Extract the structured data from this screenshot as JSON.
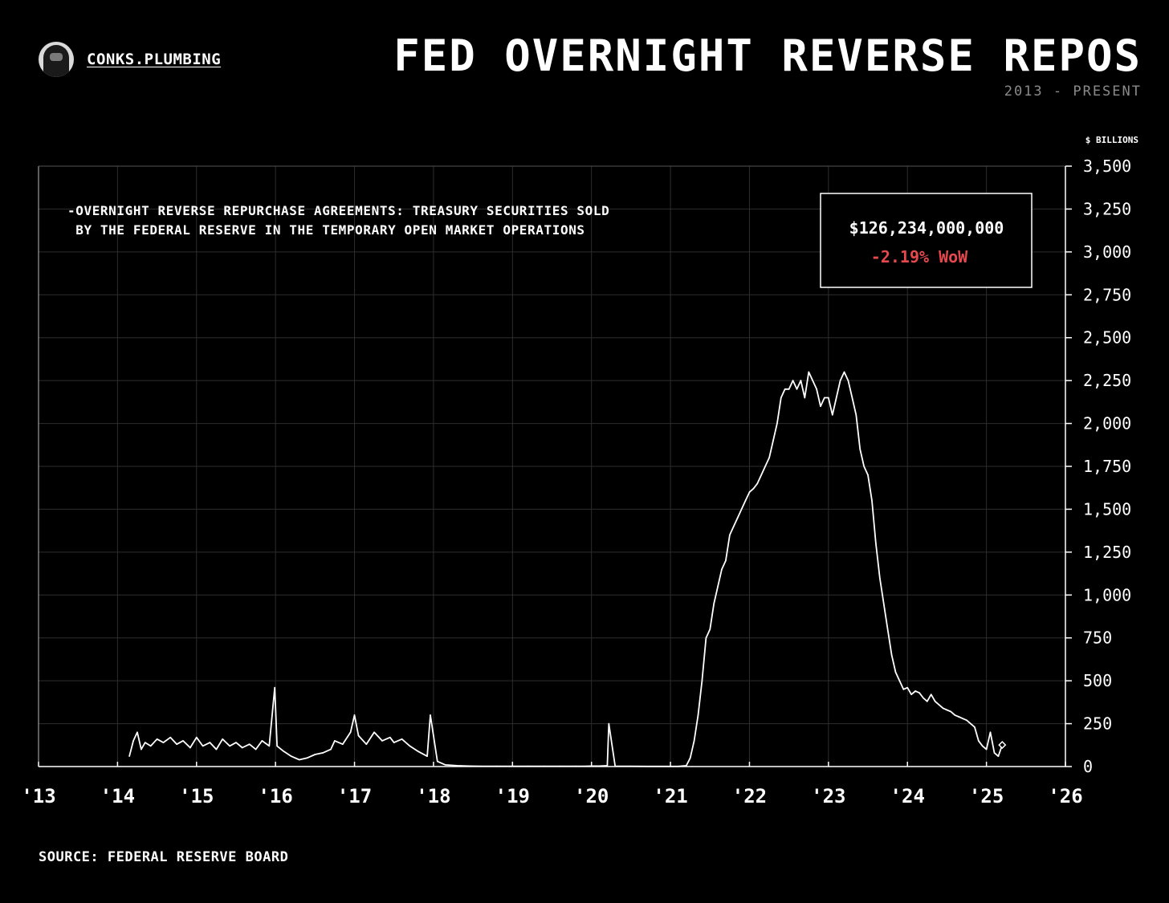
{
  "brand": {
    "name": "CONKS.PLUMBING"
  },
  "header": {
    "title": "FED OVERNIGHT REVERSE REPOS",
    "subtitle": "2013 - PRESENT"
  },
  "footer": {
    "source": "SOURCE: FEDERAL RESERVE BOARD"
  },
  "colors": {
    "background": "#000000",
    "line": "#ffffff",
    "grid": "#2e2e2e",
    "negative": "#e5484d"
  },
  "chart_data": {
    "type": "line",
    "title": "FED OVERNIGHT REVERSE REPOS",
    "subtitle": "2013 - PRESENT",
    "ylabel": "$ BILLIONS",
    "xlabel": "",
    "xlim": [
      2013,
      2026
    ],
    "ylim": [
      0,
      3500
    ],
    "yticks": [
      0,
      250,
      500,
      750,
      1000,
      1250,
      1500,
      1750,
      2000,
      2250,
      2500,
      2750,
      3000,
      3250,
      3500
    ],
    "ytick_labels": [
      "0",
      "250",
      "500",
      "750",
      "1,000",
      "1,250",
      "1,500",
      "1,750",
      "2,000",
      "2,250",
      "2,500",
      "2,750",
      "3,000",
      "3,250",
      "3,500"
    ],
    "xticks": [
      2013,
      2014,
      2015,
      2016,
      2017,
      2018,
      2019,
      2020,
      2021,
      2022,
      2023,
      2024,
      2025,
      2026
    ],
    "xtick_labels": [
      "'13",
      "'14",
      "'15",
      "'16",
      "'17",
      "'18",
      "'19",
      "'20",
      "'21",
      "'22",
      "'23",
      "'24",
      "'25",
      "'26"
    ],
    "grid": true,
    "y_axis_position": "right",
    "annotation_lines": [
      "-OVERNIGHT REVERSE REPURCHASE AGREEMENTS: TREASURY SECURITIES SOLD",
      " BY THE FEDERAL RESERVE IN THE TEMPORARY OPEN MARKET OPERATIONS"
    ],
    "latest": {
      "value_label": "$126,234,000,000",
      "change_label": "-2.19% WoW"
    },
    "series": [
      {
        "x": [
          2014.15,
          2014.2,
          2014.25,
          2014.3,
          2014.35,
          2014.42,
          2014.5,
          2014.58,
          2014.67,
          2014.75,
          2014.83,
          2014.92,
          2015.0,
          2015.08,
          2015.17,
          2015.25,
          2015.33,
          2015.42,
          2015.5,
          2015.58,
          2015.67,
          2015.75,
          2015.83,
          2015.92,
          2015.99,
          2016.02,
          2016.1,
          2016.2,
          2016.3,
          2016.4,
          2016.5,
          2016.6,
          2016.7,
          2016.75,
          2016.85,
          2016.95,
          2017.0,
          2017.05,
          2017.15,
          2017.25,
          2017.35,
          2017.45,
          2017.5,
          2017.6,
          2017.7,
          2017.8,
          2017.92,
          2017.96,
          2018.05,
          2018.15,
          2018.3,
          2018.45,
          2018.6,
          2018.8,
          2019.0,
          2019.2,
          2019.4,
          2019.6,
          2019.8,
          2019.9,
          2020.0,
          2020.1,
          2020.2,
          2020.22,
          2020.3,
          2020.5,
          2020.7,
          2020.9,
          2021.1,
          2021.2,
          2021.25,
          2021.3,
          2021.35,
          2021.4,
          2021.45,
          2021.5,
          2021.55,
          2021.6,
          2021.65,
          2021.7,
          2021.75,
          2021.8,
          2021.85,
          2021.9,
          2021.95,
          2022.0,
          2022.05,
          2022.1,
          2022.15,
          2022.2,
          2022.25,
          2022.3,
          2022.35,
          2022.4,
          2022.45,
          2022.5,
          2022.55,
          2022.6,
          2022.65,
          2022.7,
          2022.75,
          2022.8,
          2022.85,
          2022.9,
          2022.95,
          2023.0,
          2023.05,
          2023.1,
          2023.15,
          2023.2,
          2023.25,
          2023.3,
          2023.35,
          2023.4,
          2023.45,
          2023.5,
          2023.55,
          2023.6,
          2023.65,
          2023.7,
          2023.75,
          2023.8,
          2023.85,
          2023.9,
          2023.95,
          2024.0,
          2024.05,
          2024.1,
          2024.15,
          2024.2,
          2024.25,
          2024.3,
          2024.35,
          2024.4,
          2024.45,
          2024.5,
          2024.55,
          2024.6,
          2024.65,
          2024.7,
          2024.75,
          2024.8,
          2024.85,
          2024.9,
          2024.95,
          2025.0,
          2025.05,
          2025.1,
          2025.15,
          2025.2
        ],
        "y": [
          60,
          150,
          200,
          100,
          140,
          120,
          160,
          140,
          170,
          130,
          150,
          110,
          170,
          120,
          140,
          100,
          160,
          120,
          140,
          110,
          130,
          100,
          150,
          120,
          460,
          120,
          90,
          60,
          40,
          50,
          70,
          80,
          100,
          150,
          130,
          200,
          300,
          180,
          130,
          200,
          150,
          170,
          140,
          160,
          120,
          90,
          60,
          300,
          30,
          10,
          5,
          3,
          2,
          2,
          2,
          2,
          2,
          2,
          2,
          2,
          3,
          3,
          5,
          250,
          2,
          2,
          1,
          1,
          1,
          5,
          50,
          150,
          300,
          500,
          750,
          800,
          950,
          1050,
          1150,
          1200,
          1350,
          1400,
          1450,
          1500,
          1550,
          1600,
          1620,
          1650,
          1700,
          1750,
          1800,
          1900,
          2000,
          2150,
          2200,
          2200,
          2250,
          2200,
          2250,
          2150,
          2300,
          2250,
          2200,
          2100,
          2150,
          2150,
          2050,
          2150,
          2250,
          2300,
          2250,
          2150,
          2050,
          1850,
          1750,
          1700,
          1550,
          1300,
          1100,
          950,
          800,
          650,
          550,
          500,
          450,
          460,
          420,
          440,
          430,
          400,
          380,
          420,
          380,
          360,
          340,
          330,
          320,
          300,
          290,
          280,
          270,
          250,
          230,
          150,
          120,
          100,
          200,
          80,
          60,
          126
        ]
      }
    ]
  }
}
